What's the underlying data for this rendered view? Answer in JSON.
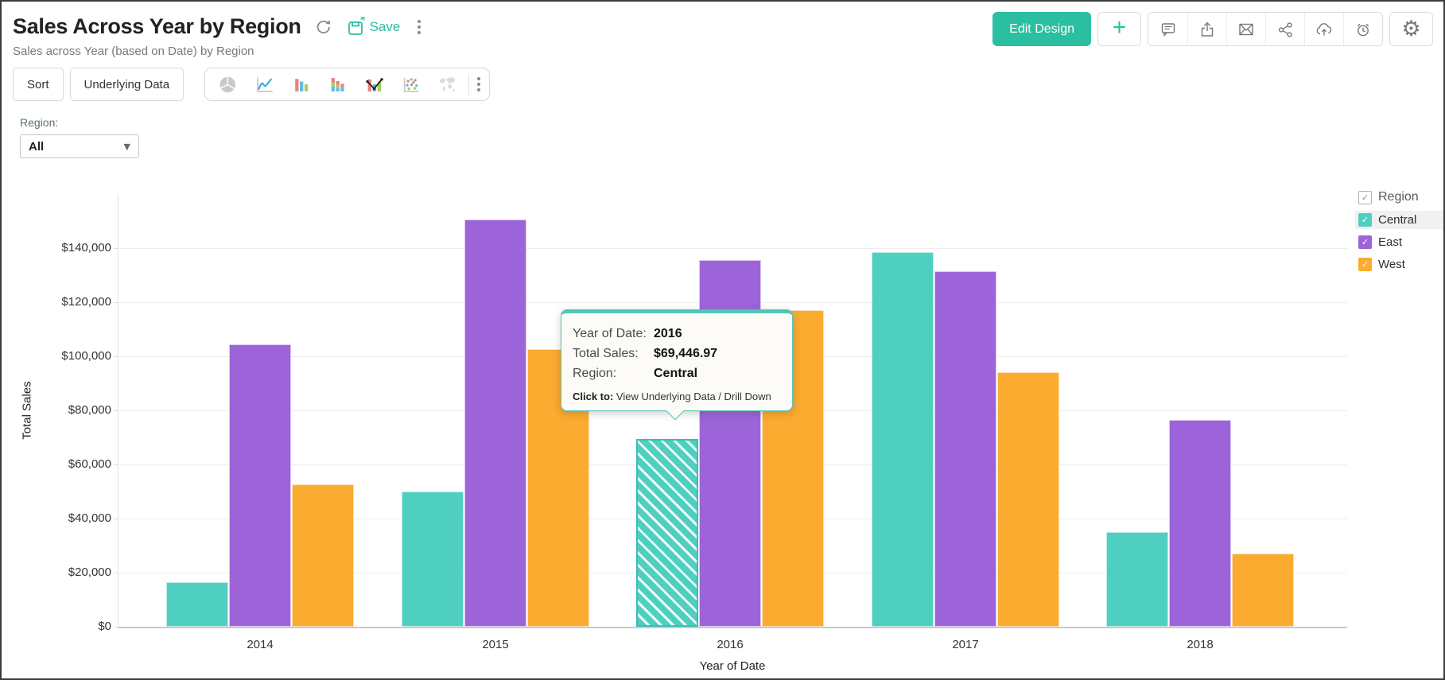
{
  "header": {
    "title": "Sales Across Year by Region",
    "subtitle": "Sales across Year (based on Date) by Region",
    "save_label": "Save",
    "edit_design_label": "Edit Design",
    "plus_label": "+"
  },
  "toolbar": {
    "sort_label": "Sort",
    "underlying_data_label": "Underlying Data",
    "chart_types": [
      "pie",
      "line",
      "bar",
      "stacked-bar",
      "combo",
      "scatter",
      "map"
    ]
  },
  "filter": {
    "label": "Region:",
    "value": "All"
  },
  "legend": {
    "title": "Region",
    "items": [
      {
        "label": "Central",
        "color": "#4fcfc0",
        "checked": true,
        "highlighted": true
      },
      {
        "label": "East",
        "color": "#9c64d8",
        "checked": true,
        "highlighted": false
      },
      {
        "label": "West",
        "color": "#fbab2f",
        "checked": true,
        "highlighted": false
      }
    ]
  },
  "tooltip": {
    "rows": [
      {
        "label": "Year of Date:",
        "value": "2016"
      },
      {
        "label": "Total Sales:",
        "value": "$69,446.97"
      },
      {
        "label": "Region:",
        "value": "Central"
      }
    ],
    "click_to_label": "Click to:",
    "click_to_value": "View Underlying Data / Drill Down"
  },
  "chart_data": {
    "type": "bar",
    "title": "Sales Across Year by Region",
    "xlabel": "Year of Date",
    "ylabel": "Total Sales",
    "categories": [
      "2014",
      "2015",
      "2016",
      "2017",
      "2018"
    ],
    "series": [
      {
        "name": "Central",
        "color": "#4fcfc0",
        "values": [
          16500,
          50000,
          69446.97,
          138500,
          35000
        ]
      },
      {
        "name": "East",
        "color": "#9c64d8",
        "values": [
          104500,
          150500,
          135500,
          131500,
          76500
        ]
      },
      {
        "name": "West",
        "color": "#fbab2f",
        "values": [
          52500,
          102500,
          117000,
          94000,
          27000
        ]
      }
    ],
    "ylim": [
      0,
      157000
    ],
    "ytick_step": 20000,
    "ytick_labels": [
      "$0",
      "$20,000",
      "$40,000",
      "$60,000",
      "$80,000",
      "$100,000",
      "$120,000",
      "$140,000"
    ],
    "grid": true,
    "legend_position": "right",
    "highlighted": {
      "series": "Central",
      "category": "2016"
    }
  },
  "colors": {
    "accent": "#2abfa1",
    "bar_central": "#4fcfc0",
    "bar_east": "#9c64d8",
    "bar_west": "#fbab2f"
  }
}
